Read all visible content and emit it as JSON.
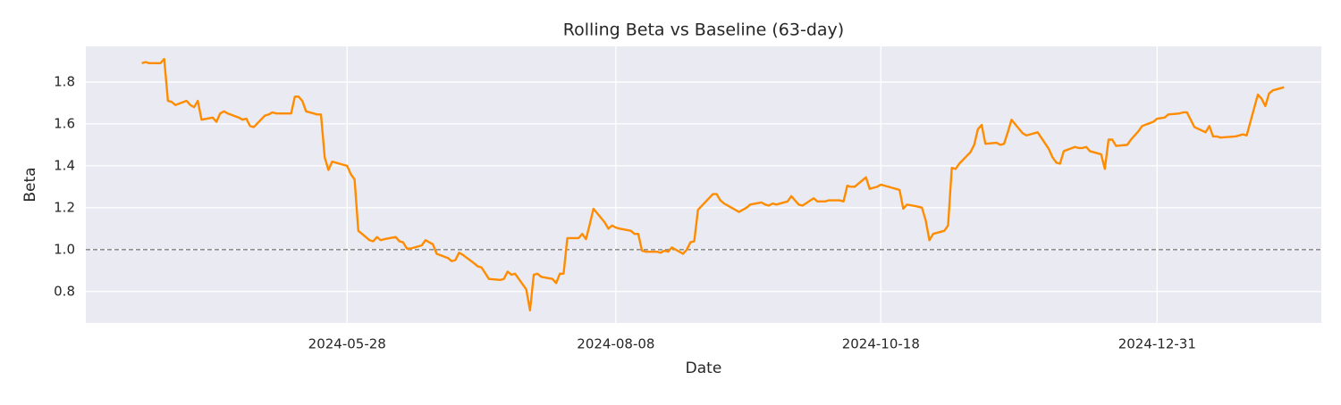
{
  "chart_data": {
    "type": "line",
    "title": "Rolling Beta vs Baseline (63-day)",
    "x_label": "Date",
    "y_label": "Beta",
    "color": "#ff8c00",
    "grid": true,
    "reference_line": 1,
    "x": [
      "2024-04-03",
      "2024-04-04",
      "2024-04-05",
      "2024-04-08",
      "2024-04-09",
      "2024-04-10",
      "2024-04-11",
      "2024-04-12",
      "2024-04-15",
      "2024-04-16",
      "2024-04-17",
      "2024-04-18",
      "2024-04-19",
      "2024-04-22",
      "2024-04-23",
      "2024-04-24",
      "2024-04-25",
      "2024-04-26",
      "2024-04-29",
      "2024-04-30",
      "2024-05-01",
      "2024-05-02",
      "2024-05-03",
      "2024-05-06",
      "2024-05-07",
      "2024-05-08",
      "2024-05-09",
      "2024-05-10",
      "2024-05-13",
      "2024-05-14",
      "2024-05-15",
      "2024-05-16",
      "2024-05-17",
      "2024-05-20",
      "2024-05-21",
      "2024-05-22",
      "2024-05-23",
      "2024-05-24",
      "2024-05-28",
      "2024-05-29",
      "2024-05-30",
      "2024-05-31",
      "2024-06-03",
      "2024-06-04",
      "2024-06-05",
      "2024-06-06",
      "2024-06-07",
      "2024-06-10",
      "2024-06-11",
      "2024-06-12",
      "2024-06-13",
      "2024-06-14",
      "2024-06-17",
      "2024-06-18",
      "2024-06-20",
      "2024-06-21",
      "2024-06-24",
      "2024-06-25",
      "2024-06-26",
      "2024-06-27",
      "2024-06-28",
      "2024-07-01",
      "2024-07-02",
      "2024-07-03",
      "2024-07-05",
      "2024-07-08",
      "2024-07-09",
      "2024-07-10",
      "2024-07-11",
      "2024-07-12",
      "2024-07-15",
      "2024-07-16",
      "2024-07-17",
      "2024-07-18",
      "2024-07-19",
      "2024-07-22",
      "2024-07-23",
      "2024-07-24",
      "2024-07-25",
      "2024-07-26",
      "2024-07-29",
      "2024-07-30",
      "2024-07-31",
      "2024-08-01",
      "2024-08-02",
      "2024-08-05",
      "2024-08-06",
      "2024-08-07",
      "2024-08-08",
      "2024-08-09",
      "2024-08-12",
      "2024-08-13",
      "2024-08-14",
      "2024-08-15",
      "2024-08-16",
      "2024-08-19",
      "2024-08-20",
      "2024-08-21",
      "2024-08-22",
      "2024-08-23",
      "2024-08-26",
      "2024-08-27",
      "2024-08-28",
      "2024-08-29",
      "2024-08-30",
      "2024-09-03",
      "2024-09-04",
      "2024-09-05",
      "2024-09-06",
      "2024-09-09",
      "2024-09-10",
      "2024-09-11",
      "2024-09-12",
      "2024-09-13",
      "2024-09-16",
      "2024-09-17",
      "2024-09-18",
      "2024-09-19",
      "2024-09-20",
      "2024-09-23",
      "2024-09-24",
      "2024-09-25",
      "2024-09-26",
      "2024-09-27",
      "2024-09-30",
      "2024-10-01",
      "2024-10-02",
      "2024-10-03",
      "2024-10-04",
      "2024-10-07",
      "2024-10-08",
      "2024-10-09",
      "2024-10-10",
      "2024-10-11",
      "2024-10-14",
      "2024-10-15",
      "2024-10-16",
      "2024-10-17",
      "2024-10-18",
      "2024-10-21",
      "2024-10-22",
      "2024-10-23",
      "2024-10-24",
      "2024-10-25",
      "2024-10-28",
      "2024-10-29",
      "2024-10-30",
      "2024-10-31",
      "2024-11-01",
      "2024-11-04",
      "2024-11-05",
      "2024-11-06",
      "2024-11-07",
      "2024-11-08",
      "2024-11-11",
      "2024-11-12",
      "2024-11-13",
      "2024-11-14",
      "2024-11-15",
      "2024-11-18",
      "2024-11-19",
      "2024-11-20",
      "2024-11-21",
      "2024-11-22",
      "2024-11-25",
      "2024-11-26",
      "2024-11-27",
      "2024-11-29",
      "2024-12-02",
      "2024-12-03",
      "2024-12-04",
      "2024-12-05",
      "2024-12-06",
      "2024-12-09",
      "2024-12-10",
      "2024-12-11",
      "2024-12-12",
      "2024-12-13",
      "2024-12-16",
      "2024-12-17",
      "2024-12-18",
      "2024-12-19",
      "2024-12-20",
      "2024-12-23",
      "2024-12-24",
      "2024-12-26",
      "2024-12-27",
      "2024-12-30",
      "2024-12-31",
      "2025-01-02",
      "2025-01-03",
      "2025-01-06",
      "2025-01-07",
      "2025-01-08",
      "2025-01-10",
      "2025-01-13",
      "2025-01-14",
      "2025-01-15",
      "2025-01-16",
      "2025-01-17",
      "2025-01-21",
      "2025-01-22",
      "2025-01-23",
      "2025-01-24",
      "2025-01-27",
      "2025-01-28",
      "2025-01-29",
      "2025-01-30",
      "2025-01-31",
      "2025-02-03"
    ],
    "values": [
      1.89,
      1.895,
      1.89,
      1.89,
      1.91,
      1.71,
      1.705,
      1.69,
      1.71,
      1.69,
      1.68,
      1.71,
      1.62,
      1.63,
      1.61,
      1.65,
      1.66,
      1.65,
      1.63,
      1.62,
      1.625,
      1.59,
      1.585,
      1.64,
      1.645,
      1.655,
      1.65,
      1.65,
      1.65,
      1.73,
      1.73,
      1.71,
      1.66,
      1.645,
      1.645,
      1.44,
      1.38,
      1.42,
      1.4,
      1.36,
      1.335,
      1.09,
      1.045,
      1.04,
      1.06,
      1.045,
      1.05,
      1.06,
      1.04,
      1.035,
      1.005,
      1.005,
      1.02,
      1.045,
      1.025,
      0.98,
      0.96,
      0.945,
      0.95,
      0.985,
      0.975,
      0.935,
      0.92,
      0.915,
      0.86,
      0.855,
      0.86,
      0.895,
      0.88,
      0.885,
      0.81,
      0.71,
      0.88,
      0.885,
      0.87,
      0.86,
      0.84,
      0.885,
      0.885,
      1.055,
      1.055,
      1.075,
      1.05,
      1.12,
      1.195,
      1.13,
      1.1,
      1.115,
      1.105,
      1.1,
      1.09,
      1.075,
      1.075,
      0.995,
      0.99,
      0.99,
      0.985,
      0.995,
      0.99,
      1.01,
      0.98,
      1.0,
      1.035,
      1.04,
      1.19,
      1.265,
      1.265,
      1.235,
      1.22,
      1.19,
      1.18,
      1.19,
      1.2,
      1.215,
      1.225,
      1.215,
      1.21,
      1.22,
      1.215,
      1.23,
      1.255,
      1.235,
      1.215,
      1.21,
      1.245,
      1.23,
      1.23,
      1.23,
      1.235,
      1.235,
      1.23,
      1.305,
      1.3,
      1.3,
      1.345,
      1.29,
      1.295,
      1.3,
      1.31,
      1.295,
      1.29,
      1.285,
      1.195,
      1.215,
      1.205,
      1.2,
      1.14,
      1.045,
      1.075,
      1.09,
      1.115,
      1.39,
      1.385,
      1.41,
      1.465,
      1.5,
      1.575,
      1.595,
      1.505,
      1.51,
      1.5,
      1.505,
      1.56,
      1.62,
      1.555,
      1.545,
      1.55,
      1.56,
      1.48,
      1.44,
      1.415,
      1.41,
      1.47,
      1.49,
      1.485,
      1.485,
      1.49,
      1.47,
      1.455,
      1.385,
      1.525,
      1.525,
      1.495,
      1.5,
      1.525,
      1.565,
      1.59,
      1.61,
      1.625,
      1.63,
      1.645,
      1.65,
      1.655,
      1.655,
      1.585,
      1.56,
      1.59,
      1.54,
      1.54,
      1.535,
      1.54,
      1.545,
      1.55,
      1.545,
      1.74,
      1.72,
      1.685,
      1.745,
      1.76,
      1.775
    ],
    "xlim": [
      "2024-03-19",
      "2025-02-13"
    ],
    "xticks": [
      "2024-05-28",
      "2024-08-08",
      "2024-10-18",
      "2024-12-31"
    ],
    "ylim": [
      0.65,
      1.97
    ],
    "yticks": [
      0.8,
      {
        "value": 1,
        "label": "1.0"
      },
      1.2,
      1.4,
      1.6,
      1.8
    ]
  }
}
